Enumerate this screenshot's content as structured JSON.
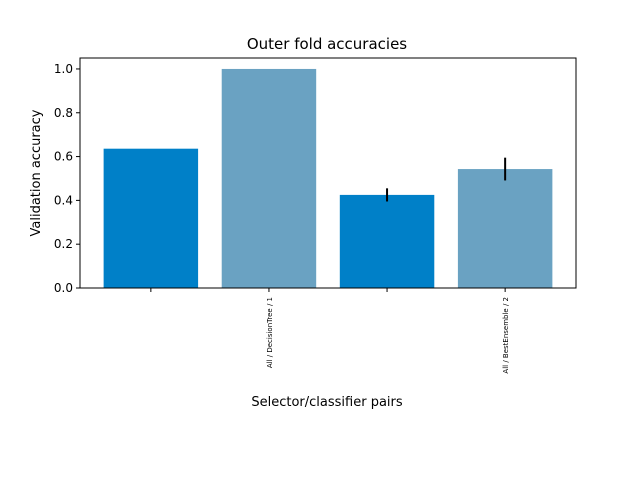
{
  "chart_data": {
    "type": "bar",
    "title": "Outer fold accuracies",
    "xlabel": "Selector/classifier pairs",
    "ylabel": "Validation accuracy",
    "ylim": [
      0,
      1.05
    ],
    "yticks": [
      "0.0",
      "0.2",
      "0.4",
      "0.6",
      "0.8",
      "1.0"
    ],
    "categories": [
      "",
      "All / DecisionTree / 1",
      "",
      "All / BestEnsemble / 2"
    ],
    "values": [
      0.636,
      1.0,
      0.425,
      0.543
    ],
    "errors": [
      0,
      0,
      0.03,
      0.052
    ],
    "colors": [
      "#0080c8",
      "#6aa2c2",
      "#0080c8",
      "#6aa2c2"
    ],
    "error_color": "#000000",
    "grid": false
  }
}
